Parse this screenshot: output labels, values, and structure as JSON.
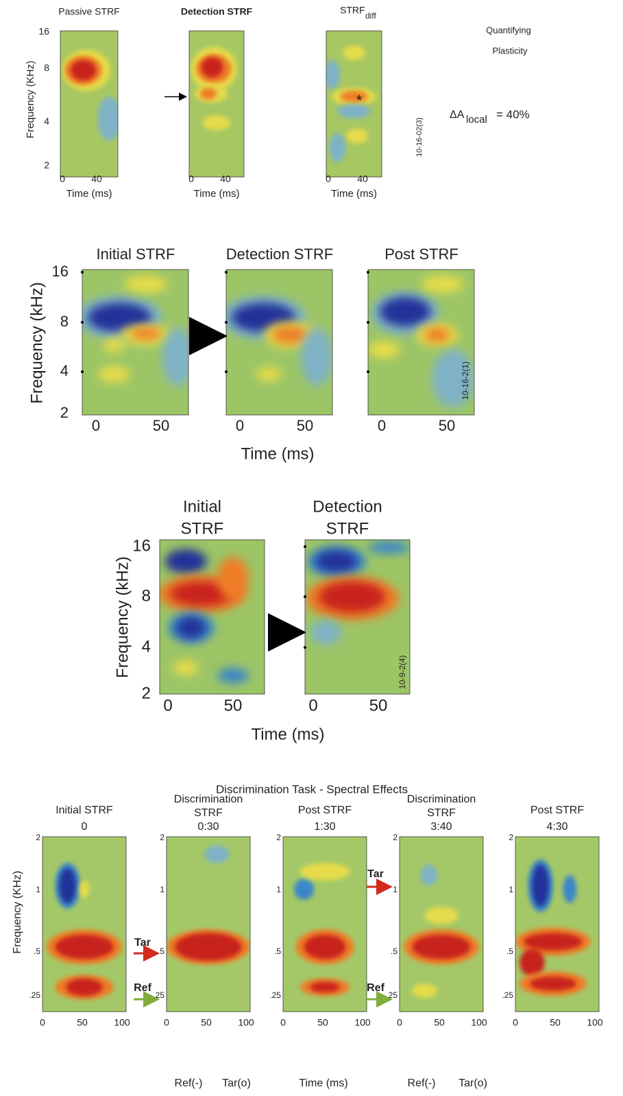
{
  "row1": {
    "titles": [
      "Passive STRF",
      "Detection STRF"
    ],
    "diff_title": "STRF",
    "diff_subscript": "diff",
    "diff_marker": "*",
    "y_label": "Frequency (KHz)",
    "y_ticks": [
      "16",
      "8",
      "4",
      "2"
    ],
    "x_ticks": [
      "0",
      "40"
    ],
    "x_label": "Time (ms)",
    "cell_id": "10-16-02(3)",
    "side_title": [
      "Quantifying",
      "Plasticity"
    ],
    "delta_symbol": "ΔA",
    "delta_subscript": "local",
    "delta_value": "= 40%"
  },
  "row2": {
    "titles": [
      "Initial STRF",
      "Detection STRF",
      "Post STRF"
    ],
    "y_label": "Frequency (kHz)",
    "y_ticks": [
      "16",
      "8",
      "4",
      "2"
    ],
    "x_ticks": [
      "0",
      "50"
    ],
    "x_label": "Time (ms)",
    "cell_id": "10-16-2(1)"
  },
  "row3": {
    "titles": [
      [
        "Initial",
        "STRF"
      ],
      [
        "Detection",
        "STRF"
      ]
    ],
    "y_label": "Frequency (kHz)",
    "y_ticks": [
      "16",
      "8",
      "4",
      "2"
    ],
    "x_ticks": [
      "0",
      "50"
    ],
    "x_label": "Time (ms)",
    "cell_id": "10-9-2(4)"
  },
  "row4": {
    "title": "Discrimination Task - Spectral Effects",
    "panels": [
      {
        "title": [
          "Initial STRF"
        ],
        "time": "0"
      },
      {
        "title": [
          "Discrimination",
          "STRF"
        ],
        "time": "0:30"
      },
      {
        "title": [
          "Post STRF"
        ],
        "time": "1:30"
      },
      {
        "title": [
          "Discrimination",
          "STRF"
        ],
        "time": "3:40"
      },
      {
        "title": [
          "Post STRF"
        ],
        "time": "4:30"
      }
    ],
    "y_label": "Frequency (KHz)",
    "y_ticks": [
      "2",
      "1",
      ".5",
      ".25"
    ],
    "x_ticks": [
      "0",
      "50",
      "100"
    ],
    "target_label": "Tar",
    "reference_label": "Ref",
    "bottom_labels": [
      "Ref(-)",
      "Tar(o)",
      "Time (ms)",
      "Ref(-)",
      "Tar(o)"
    ]
  }
}
